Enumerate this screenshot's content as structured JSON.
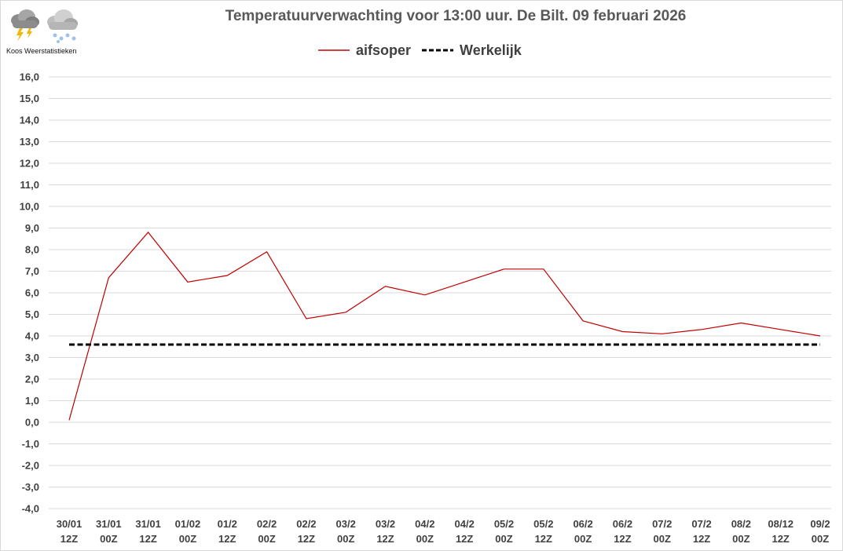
{
  "header": {
    "logo_text": "Koos Weerstatistieken",
    "logo_icons": [
      "thunderstorm-cloud-icon",
      "snow-cloud-icon"
    ]
  },
  "chart_data": {
    "type": "line",
    "title": "Temperatuurverwachting voor 13:00 uur. De Bilt. 09 februari 2026",
    "xlabel": "",
    "ylabel": "",
    "categories": [
      [
        "30/01",
        "12Z"
      ],
      [
        "31/01",
        "00Z"
      ],
      [
        "31/01",
        "12Z"
      ],
      [
        "01/02",
        "00Z"
      ],
      [
        "01/2",
        "12Z"
      ],
      [
        "02/2",
        "00Z"
      ],
      [
        "02/2",
        "12Z"
      ],
      [
        "03/2",
        "00Z"
      ],
      [
        "03/2",
        "12Z"
      ],
      [
        "04/2",
        "00Z"
      ],
      [
        "04/2",
        "12Z"
      ],
      [
        "05/2",
        "00Z"
      ],
      [
        "05/2",
        "12Z"
      ],
      [
        "06/2",
        "00Z"
      ],
      [
        "06/2",
        "12Z"
      ],
      [
        "07/2",
        "00Z"
      ],
      [
        "07/2",
        "12Z"
      ],
      [
        "08/2",
        "00Z"
      ],
      [
        "08/12",
        "12Z"
      ],
      [
        "09/2",
        "00Z"
      ]
    ],
    "series": [
      {
        "name": "aifsoper",
        "color": "#c00000",
        "style": "solid",
        "values": [
          0.1,
          6.7,
          8.8,
          6.5,
          6.8,
          7.9,
          4.8,
          5.1,
          6.3,
          5.9,
          6.5,
          7.1,
          7.1,
          4.7,
          4.2,
          4.1,
          4.3,
          4.6,
          4.3,
          4.0
        ]
      },
      {
        "name": "Werkelijk",
        "color": "#000000",
        "style": "dashed",
        "values": [
          3.6,
          3.6,
          3.6,
          3.6,
          3.6,
          3.6,
          3.6,
          3.6,
          3.6,
          3.6,
          3.6,
          3.6,
          3.6,
          3.6,
          3.6,
          3.6,
          3.6,
          3.6,
          3.6,
          3.6
        ]
      }
    ],
    "ylim": [
      -4.0,
      16.0
    ],
    "ytick_step": 1.0,
    "ytick_labels": [
      "16,0",
      "15,0",
      "14,0",
      "13,0",
      "12,0",
      "11,0",
      "10,0",
      "9,0",
      "8,0",
      "7,0",
      "6,0",
      "5,0",
      "4,0",
      "3,0",
      "2,0",
      "1,0",
      "0,0",
      "-1,0",
      "-2,0",
      "-3,0",
      "-4,0"
    ],
    "grid": true,
    "legend_position": "top-center"
  }
}
